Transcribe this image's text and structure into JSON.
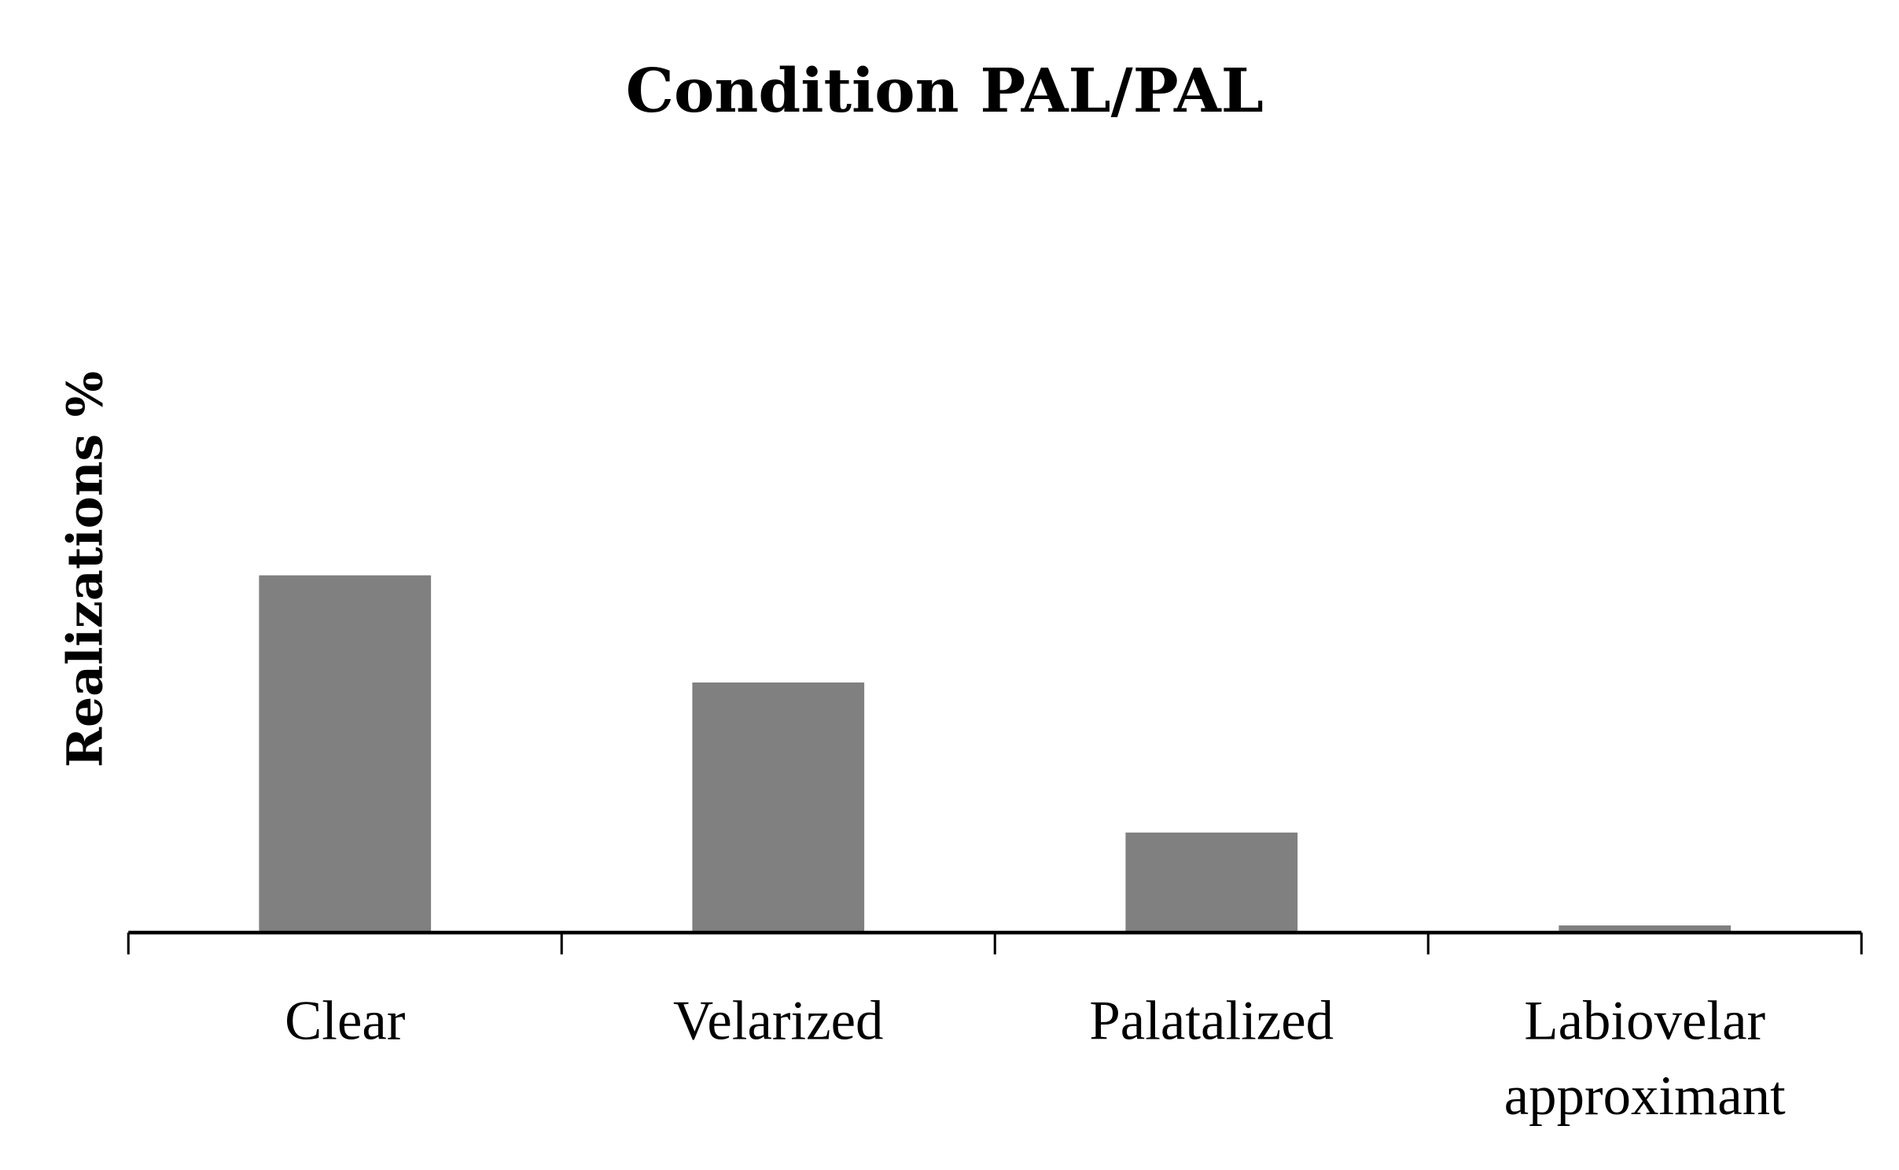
{
  "chart_data": {
    "type": "bar",
    "title": "Condition PAL/PAL",
    "xlabel": "",
    "ylabel": "Realizations %",
    "categories": [
      "Clear",
      "Velarized",
      "Palatalized",
      [
        "Labiovelar",
        "approximant"
      ]
    ],
    "values": [
      50,
      35,
      14,
      1
    ],
    "ylim": [
      0,
      100
    ],
    "grid": false,
    "legend": "none",
    "bar_color": "#808080",
    "axis_color": "#000000"
  }
}
